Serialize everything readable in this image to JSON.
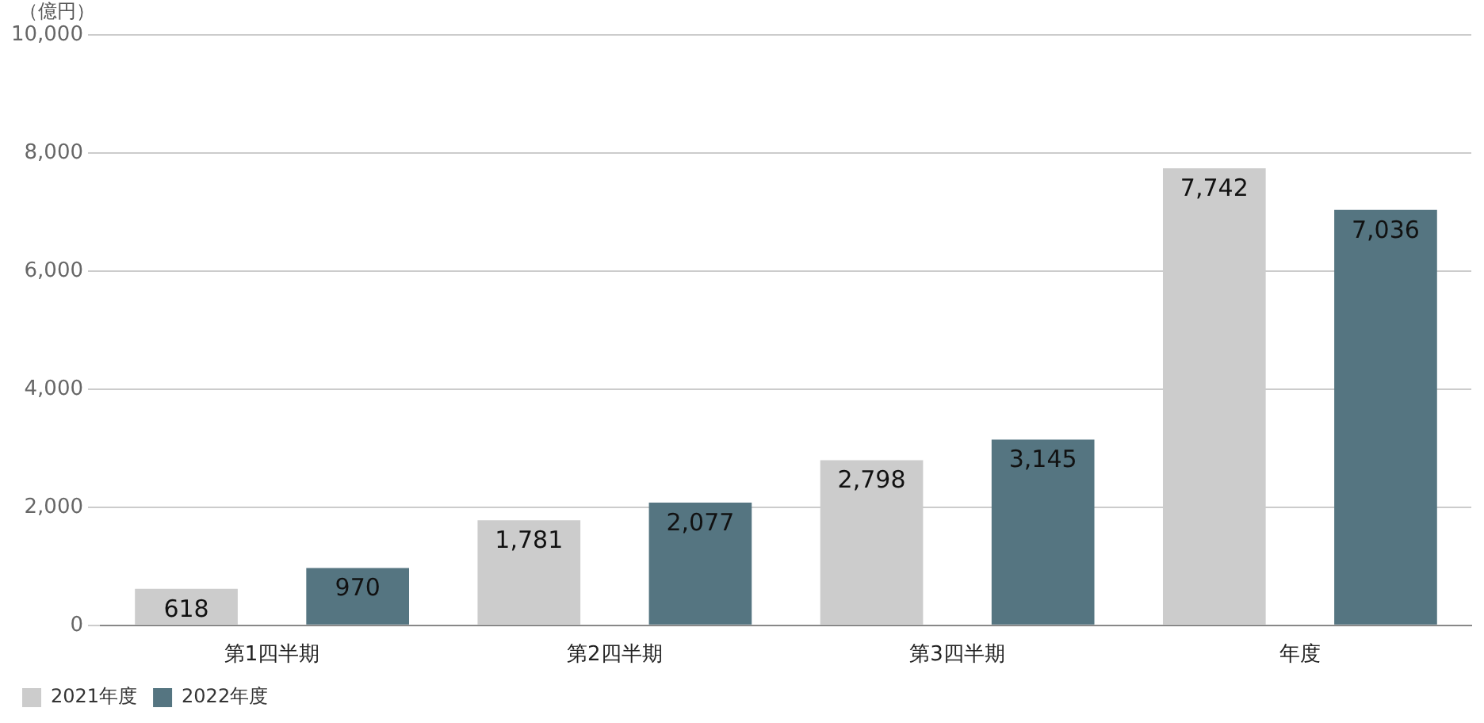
{
  "chart_data": {
    "type": "bar",
    "ylabel": "（億円）",
    "categories": [
      "第1四半期",
      "第2四半期",
      "第3四半期",
      "年度"
    ],
    "series": [
      {
        "name": "2021年度",
        "color": "#cccccc",
        "values": [
          618,
          1781,
          2798,
          7742
        ],
        "value_labels": [
          "618",
          "1,781",
          "2,798",
          "7,742"
        ]
      },
      {
        "name": "2022年度",
        "color": "#557581",
        "values": [
          970,
          2077,
          3145,
          7036
        ],
        "value_labels": [
          "970",
          "2,077",
          "3,145",
          "7,036"
        ]
      }
    ],
    "ylim": [
      0,
      10000
    ],
    "yticks": [
      {
        "value": 0,
        "label": "0"
      },
      {
        "value": 2000,
        "label": "2,000"
      },
      {
        "value": 4000,
        "label": "4,000"
      },
      {
        "value": 6000,
        "label": "6,000"
      },
      {
        "value": 8000,
        "label": "8,000"
      },
      {
        "value": 10000,
        "label": "10,000"
      }
    ],
    "grid": "y",
    "legend": "bottom left"
  }
}
